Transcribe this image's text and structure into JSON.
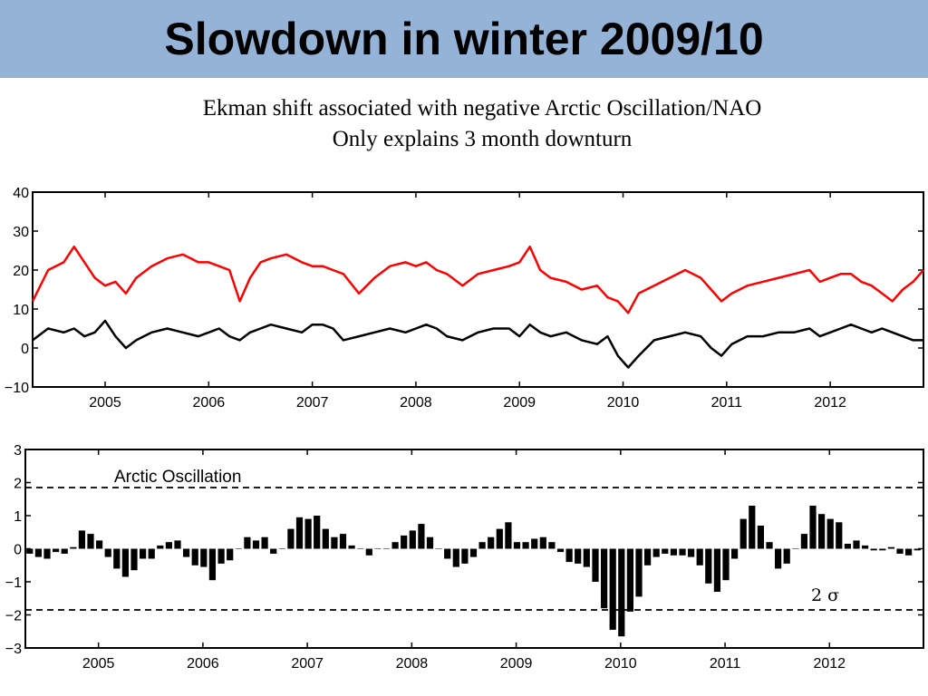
{
  "slide": {
    "title": "Slowdown in winter 2009/10",
    "subtitle_line1": "Ekman shift associated with negative Arctic Oscillation/NAO",
    "subtitle_line2": "Only explains 3 month downturn"
  },
  "colors": {
    "band": "#95b3d7",
    "red_series": "#ff0000",
    "black_series": "#000000"
  },
  "chart_data": [
    {
      "type": "line",
      "xlim": [
        2004.3,
        2012.9
      ],
      "ylim": [
        -10,
        40
      ],
      "x_ticks": [
        2005,
        2006,
        2007,
        2008,
        2009,
        2010,
        2011,
        2012
      ],
      "x_tick_labels": [
        "2005",
        "2006",
        "2007",
        "2008",
        "2009",
        "2010",
        "2011",
        "2012"
      ],
      "y_ticks": [
        -10,
        0,
        10,
        20,
        30,
        40
      ],
      "y_tick_labels": [
        "−10",
        "0",
        "10",
        "20",
        "30",
        "40"
      ],
      "grid": false,
      "series": [
        {
          "color": "#ff0000",
          "x": [
            2004.3,
            2004.45,
            2004.6,
            2004.7,
            2004.8,
            2004.9,
            2005.0,
            2005.1,
            2005.2,
            2005.3,
            2005.45,
            2005.6,
            2005.75,
            2005.9,
            2006.0,
            2006.1,
            2006.2,
            2006.3,
            2006.4,
            2006.5,
            2006.6,
            2006.75,
            2006.9,
            2007.0,
            2007.1,
            2007.2,
            2007.3,
            2007.45,
            2007.6,
            2007.75,
            2007.9,
            2008.0,
            2008.1,
            2008.2,
            2008.3,
            2008.45,
            2008.6,
            2008.75,
            2008.9,
            2009.0,
            2009.1,
            2009.2,
            2009.3,
            2009.45,
            2009.6,
            2009.75,
            2009.85,
            2009.95,
            2010.05,
            2010.15,
            2010.3,
            2010.45,
            2010.6,
            2010.75,
            2010.85,
            2010.95,
            2011.05,
            2011.2,
            2011.35,
            2011.5,
            2011.65,
            2011.8,
            2011.9,
            2012.0,
            2012.1,
            2012.2,
            2012.3,
            2012.4,
            2012.5,
            2012.6,
            2012.7,
            2012.8,
            2012.9
          ],
          "y": [
            12,
            20,
            22,
            26,
            22,
            18,
            16,
            17,
            14,
            18,
            21,
            23,
            24,
            22,
            22,
            21,
            20,
            12,
            18,
            22,
            23,
            24,
            22,
            21,
            21,
            20,
            19,
            14,
            18,
            21,
            22,
            21,
            22,
            20,
            19,
            16,
            19,
            20,
            21,
            22,
            26,
            20,
            18,
            17,
            15,
            16,
            13,
            12,
            9,
            14,
            16,
            18,
            20,
            18,
            15,
            12,
            14,
            16,
            17,
            18,
            19,
            20,
            17,
            18,
            19,
            19,
            17,
            16,
            14,
            12,
            15,
            17,
            20
          ]
        },
        {
          "color": "#000000",
          "x": [
            2004.3,
            2004.45,
            2004.6,
            2004.7,
            2004.8,
            2004.9,
            2005.0,
            2005.1,
            2005.2,
            2005.3,
            2005.45,
            2005.6,
            2005.75,
            2005.9,
            2006.0,
            2006.1,
            2006.2,
            2006.3,
            2006.4,
            2006.5,
            2006.6,
            2006.75,
            2006.9,
            2007.0,
            2007.1,
            2007.2,
            2007.3,
            2007.45,
            2007.6,
            2007.75,
            2007.9,
            2008.0,
            2008.1,
            2008.2,
            2008.3,
            2008.45,
            2008.6,
            2008.75,
            2008.9,
            2009.0,
            2009.1,
            2009.2,
            2009.3,
            2009.45,
            2009.6,
            2009.75,
            2009.85,
            2009.95,
            2010.05,
            2010.15,
            2010.3,
            2010.45,
            2010.6,
            2010.75,
            2010.85,
            2010.95,
            2011.05,
            2011.2,
            2011.35,
            2011.5,
            2011.65,
            2011.8,
            2011.9,
            2012.0,
            2012.1,
            2012.2,
            2012.3,
            2012.4,
            2012.5,
            2012.6,
            2012.7,
            2012.8,
            2012.9
          ],
          "y": [
            2,
            5,
            4,
            5,
            3,
            4,
            7,
            3,
            0,
            2,
            4,
            5,
            4,
            3,
            4,
            5,
            3,
            2,
            4,
            5,
            6,
            5,
            4,
            6,
            6,
            5,
            2,
            3,
            4,
            5,
            4,
            5,
            6,
            5,
            3,
            2,
            4,
            5,
            5,
            3,
            6,
            4,
            3,
            4,
            2,
            1,
            3,
            -2,
            -5,
            -2,
            2,
            3,
            4,
            3,
            0,
            -2,
            1,
            3,
            3,
            4,
            4,
            5,
            3,
            4,
            5,
            6,
            5,
            4,
            5,
            4,
            3,
            2,
            2
          ]
        }
      ]
    },
    {
      "type": "bar",
      "xlim": [
        2004.3,
        2012.9
      ],
      "ylim": [
        -3,
        3
      ],
      "x_ticks": [
        2005,
        2006,
        2007,
        2008,
        2009,
        2010,
        2011,
        2012
      ],
      "x_tick_labels": [
        "2005",
        "2006",
        "2007",
        "2008",
        "2009",
        "2010",
        "2011",
        "2012"
      ],
      "y_ticks": [
        -3,
        -2,
        -1,
        0,
        1,
        2,
        3
      ],
      "y_tick_labels": [
        "−3",
        "−2",
        "−1",
        "0",
        "1",
        "2",
        "3"
      ],
      "grid": false,
      "annotation": "Arctic Oscillation",
      "sigma_label": "2 σ",
      "reference_lines": [
        1.85,
        -1.85
      ],
      "x_start": 2004.3,
      "step": 0.08333,
      "values": [
        -0.15,
        -0.25,
        -0.3,
        -0.1,
        -0.15,
        0.05,
        0.55,
        0.45,
        0.25,
        -0.25,
        -0.6,
        -0.85,
        -0.65,
        -0.3,
        -0.3,
        0.1,
        0.2,
        0.25,
        -0.25,
        -0.5,
        -0.55,
        -0.95,
        -0.45,
        -0.35,
        0.0,
        0.35,
        0.25,
        0.35,
        -0.15,
        0.0,
        0.6,
        0.95,
        0.9,
        1.0,
        0.6,
        0.35,
        0.45,
        0.1,
        0.0,
        -0.2,
        0.0,
        0.0,
        0.2,
        0.4,
        0.55,
        0.75,
        0.35,
        0.0,
        -0.3,
        -0.55,
        -0.45,
        -0.25,
        0.2,
        0.35,
        0.6,
        0.8,
        0.2,
        0.2,
        0.3,
        0.35,
        0.2,
        -0.1,
        -0.4,
        -0.45,
        -0.55,
        -1.0,
        -1.8,
        -2.45,
        -2.65,
        -1.9,
        -1.45,
        -0.5,
        -0.25,
        -0.15,
        -0.2,
        -0.2,
        -0.25,
        -0.5,
        -1.05,
        -1.3,
        -0.95,
        -0.3,
        0.9,
        1.3,
        0.7,
        0.2,
        -0.6,
        -0.45,
        0.0,
        0.45,
        1.3,
        1.05,
        0.9,
        0.8,
        0.15,
        0.25,
        0.1,
        -0.05,
        -0.05,
        0.05,
        -0.15,
        -0.2,
        -0.05
      ]
    }
  ]
}
